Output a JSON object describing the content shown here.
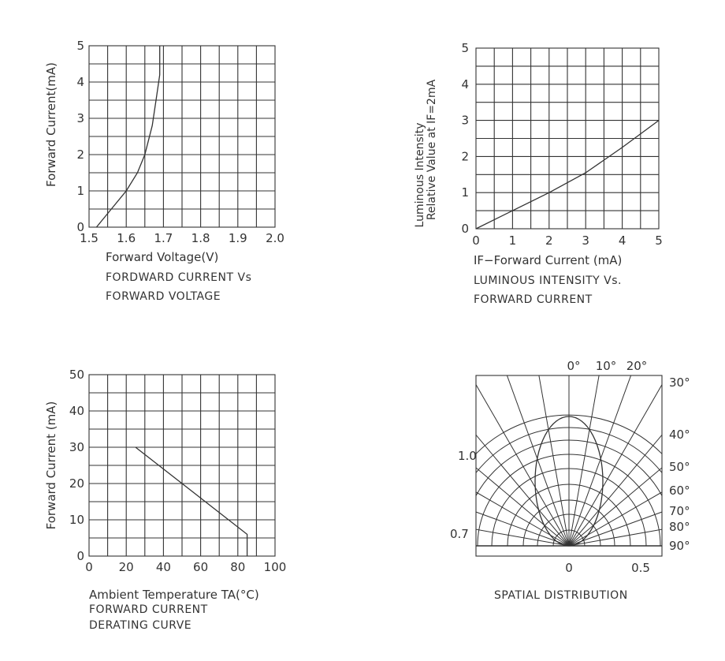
{
  "chart_data": [
    {
      "type": "line",
      "xlabel": "Forward Voltage(V)",
      "ylabel": "Forward Current(mA)",
      "caption": [
        "FORDWARD CURRENT Vs",
        "FORWARD VOLTAGE"
      ],
      "xlim": [
        1.5,
        2.0
      ],
      "ylim": [
        0,
        5
      ],
      "x_ticks": [
        "1.5",
        "1.6",
        "1.7",
        "1.8",
        "1.9",
        "2.0"
      ],
      "y_ticks": [
        "0",
        "1",
        "2",
        "3",
        "4",
        "5"
      ],
      "grid": true,
      "series": [
        {
          "x": [
            1.52,
            1.56,
            1.6,
            1.63,
            1.65,
            1.67,
            1.68,
            1.69,
            1.69
          ],
          "y": [
            0,
            0.5,
            1.0,
            1.5,
            2.0,
            2.8,
            3.5,
            4.2,
            5.0
          ]
        }
      ]
    },
    {
      "type": "line",
      "xlabel": "IF−Forward Current (mA)",
      "ylabel": [
        "Luminous Intensity",
        "Relative Value at IF=2mA"
      ],
      "caption": [
        "LUMINOUS INTENSITY Vs.",
        "FORWARD CURRENT"
      ],
      "xlim": [
        0,
        5
      ],
      "ylim": [
        0,
        5
      ],
      "x_ticks": [
        "0",
        "1",
        "2",
        "3",
        "4",
        "5"
      ],
      "y_ticks": [
        "0",
        "1",
        "2",
        "3",
        "4",
        "5"
      ],
      "grid": true,
      "series": [
        {
          "x": [
            0,
            1,
            2,
            3,
            4,
            5
          ],
          "y": [
            0,
            0.5,
            1.0,
            1.55,
            2.25,
            3.0
          ]
        }
      ]
    },
    {
      "type": "line",
      "xlabel": "Ambient Temperature TA(°C)",
      "ylabel": "Forward Current (mA)",
      "caption": [
        "FORWARD CURRENT",
        "DERATING CURVE"
      ],
      "xlim": [
        0,
        100
      ],
      "ylim": [
        0,
        50
      ],
      "x_ticks": [
        "0",
        "20",
        "40",
        "60",
        "80",
        "100"
      ],
      "y_ticks": [
        "0",
        "10",
        "20",
        "30",
        "40",
        "50"
      ],
      "grid": true,
      "series": [
        {
          "x": [
            25,
            85,
            85
          ],
          "y": [
            30,
            6,
            0
          ]
        }
      ]
    },
    {
      "type": "polar",
      "caption": [
        "SPATIAL DISTRIBUTION"
      ],
      "angle_labels": [
        "0°",
        "10°",
        "20°",
        "30°",
        "40°",
        "50°",
        "60°",
        "70°",
        "80°",
        "90°"
      ],
      "radial_labels": [
        "1.0",
        "0.7"
      ],
      "bottom_labels": [
        "0",
        "0",
        "0.5"
      ],
      "grid": true
    }
  ]
}
